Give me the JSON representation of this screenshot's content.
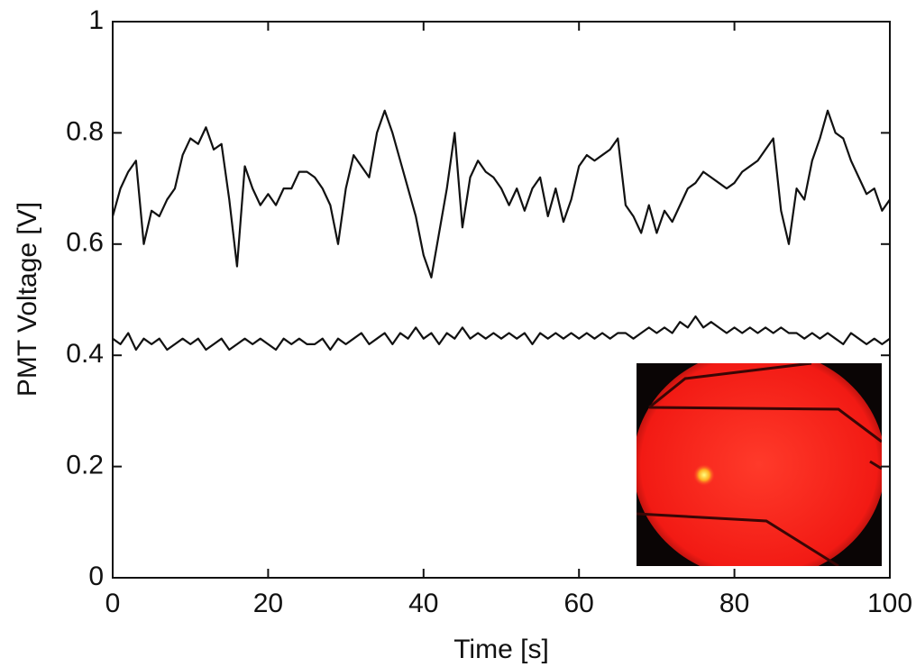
{
  "chart_data": {
    "type": "line",
    "x_label": "Time [s]",
    "y_label": "PMT Voltage [V]",
    "xlim": [
      0,
      100
    ],
    "ylim": [
      0,
      1
    ],
    "xticks": [
      0,
      20,
      40,
      60,
      80,
      100
    ],
    "yticks": [
      0,
      0.2,
      0.4,
      0.6,
      0.8,
      1
    ],
    "x": [
      0,
      1,
      2,
      3,
      4,
      5,
      6,
      7,
      8,
      9,
      10,
      11,
      12,
      13,
      14,
      15,
      16,
      17,
      18,
      19,
      20,
      21,
      22,
      23,
      24,
      25,
      26,
      27,
      28,
      29,
      30,
      31,
      32,
      33,
      34,
      35,
      36,
      37,
      38,
      39,
      40,
      41,
      42,
      43,
      44,
      45,
      46,
      47,
      48,
      49,
      50,
      51,
      52,
      53,
      54,
      55,
      56,
      57,
      58,
      59,
      60,
      61,
      62,
      63,
      64,
      65,
      66,
      67,
      68,
      69,
      70,
      71,
      72,
      73,
      74,
      75,
      76,
      77,
      78,
      79,
      80,
      81,
      82,
      83,
      84,
      85,
      86,
      87,
      88,
      89,
      90,
      91,
      92,
      93,
      94,
      95,
      96,
      97,
      98,
      99,
      100
    ],
    "series": [
      {
        "color": "#111111",
        "values": [
          0.65,
          0.7,
          0.73,
          0.75,
          0.6,
          0.66,
          0.65,
          0.68,
          0.7,
          0.76,
          0.79,
          0.78,
          0.81,
          0.77,
          0.78,
          0.68,
          0.56,
          0.74,
          0.7,
          0.67,
          0.69,
          0.67,
          0.7,
          0.7,
          0.73,
          0.73,
          0.72,
          0.7,
          0.67,
          0.6,
          0.7,
          0.76,
          0.74,
          0.72,
          0.8,
          0.84,
          0.8,
          0.75,
          0.7,
          0.65,
          0.58,
          0.54,
          0.62,
          0.7,
          0.8,
          0.63,
          0.72,
          0.75,
          0.73,
          0.72,
          0.7,
          0.67,
          0.7,
          0.66,
          0.7,
          0.72,
          0.65,
          0.7,
          0.64,
          0.68,
          0.74,
          0.76,
          0.75,
          0.76,
          0.77,
          0.79,
          0.67,
          0.65,
          0.62,
          0.67,
          0.62,
          0.66,
          0.64,
          0.67,
          0.7,
          0.71,
          0.73,
          0.72,
          0.71,
          0.7,
          0.71,
          0.73,
          0.74,
          0.75,
          0.77,
          0.79,
          0.66,
          0.6,
          0.7,
          0.68,
          0.75,
          0.79,
          0.84,
          0.8,
          0.79,
          0.75,
          0.72,
          0.69,
          0.7,
          0.66,
          0.68
        ]
      },
      {
        "color": "#111111",
        "values": [
          0.43,
          0.42,
          0.44,
          0.41,
          0.43,
          0.42,
          0.43,
          0.41,
          0.42,
          0.43,
          0.42,
          0.43,
          0.41,
          0.42,
          0.43,
          0.41,
          0.42,
          0.43,
          0.42,
          0.43,
          0.42,
          0.41,
          0.43,
          0.42,
          0.43,
          0.42,
          0.42,
          0.43,
          0.41,
          0.43,
          0.42,
          0.43,
          0.44,
          0.42,
          0.43,
          0.44,
          0.42,
          0.44,
          0.43,
          0.45,
          0.43,
          0.44,
          0.42,
          0.44,
          0.43,
          0.45,
          0.43,
          0.44,
          0.43,
          0.44,
          0.43,
          0.44,
          0.43,
          0.44,
          0.42,
          0.44,
          0.43,
          0.44,
          0.43,
          0.44,
          0.43,
          0.44,
          0.43,
          0.44,
          0.43,
          0.44,
          0.44,
          0.43,
          0.44,
          0.45,
          0.44,
          0.45,
          0.44,
          0.46,
          0.45,
          0.47,
          0.45,
          0.46,
          0.45,
          0.44,
          0.45,
          0.44,
          0.45,
          0.44,
          0.45,
          0.44,
          0.45,
          0.44,
          0.44,
          0.43,
          0.44,
          0.43,
          0.44,
          0.43,
          0.42,
          0.44,
          0.43,
          0.42,
          0.43,
          0.42,
          0.43
        ]
      }
    ]
  }
}
